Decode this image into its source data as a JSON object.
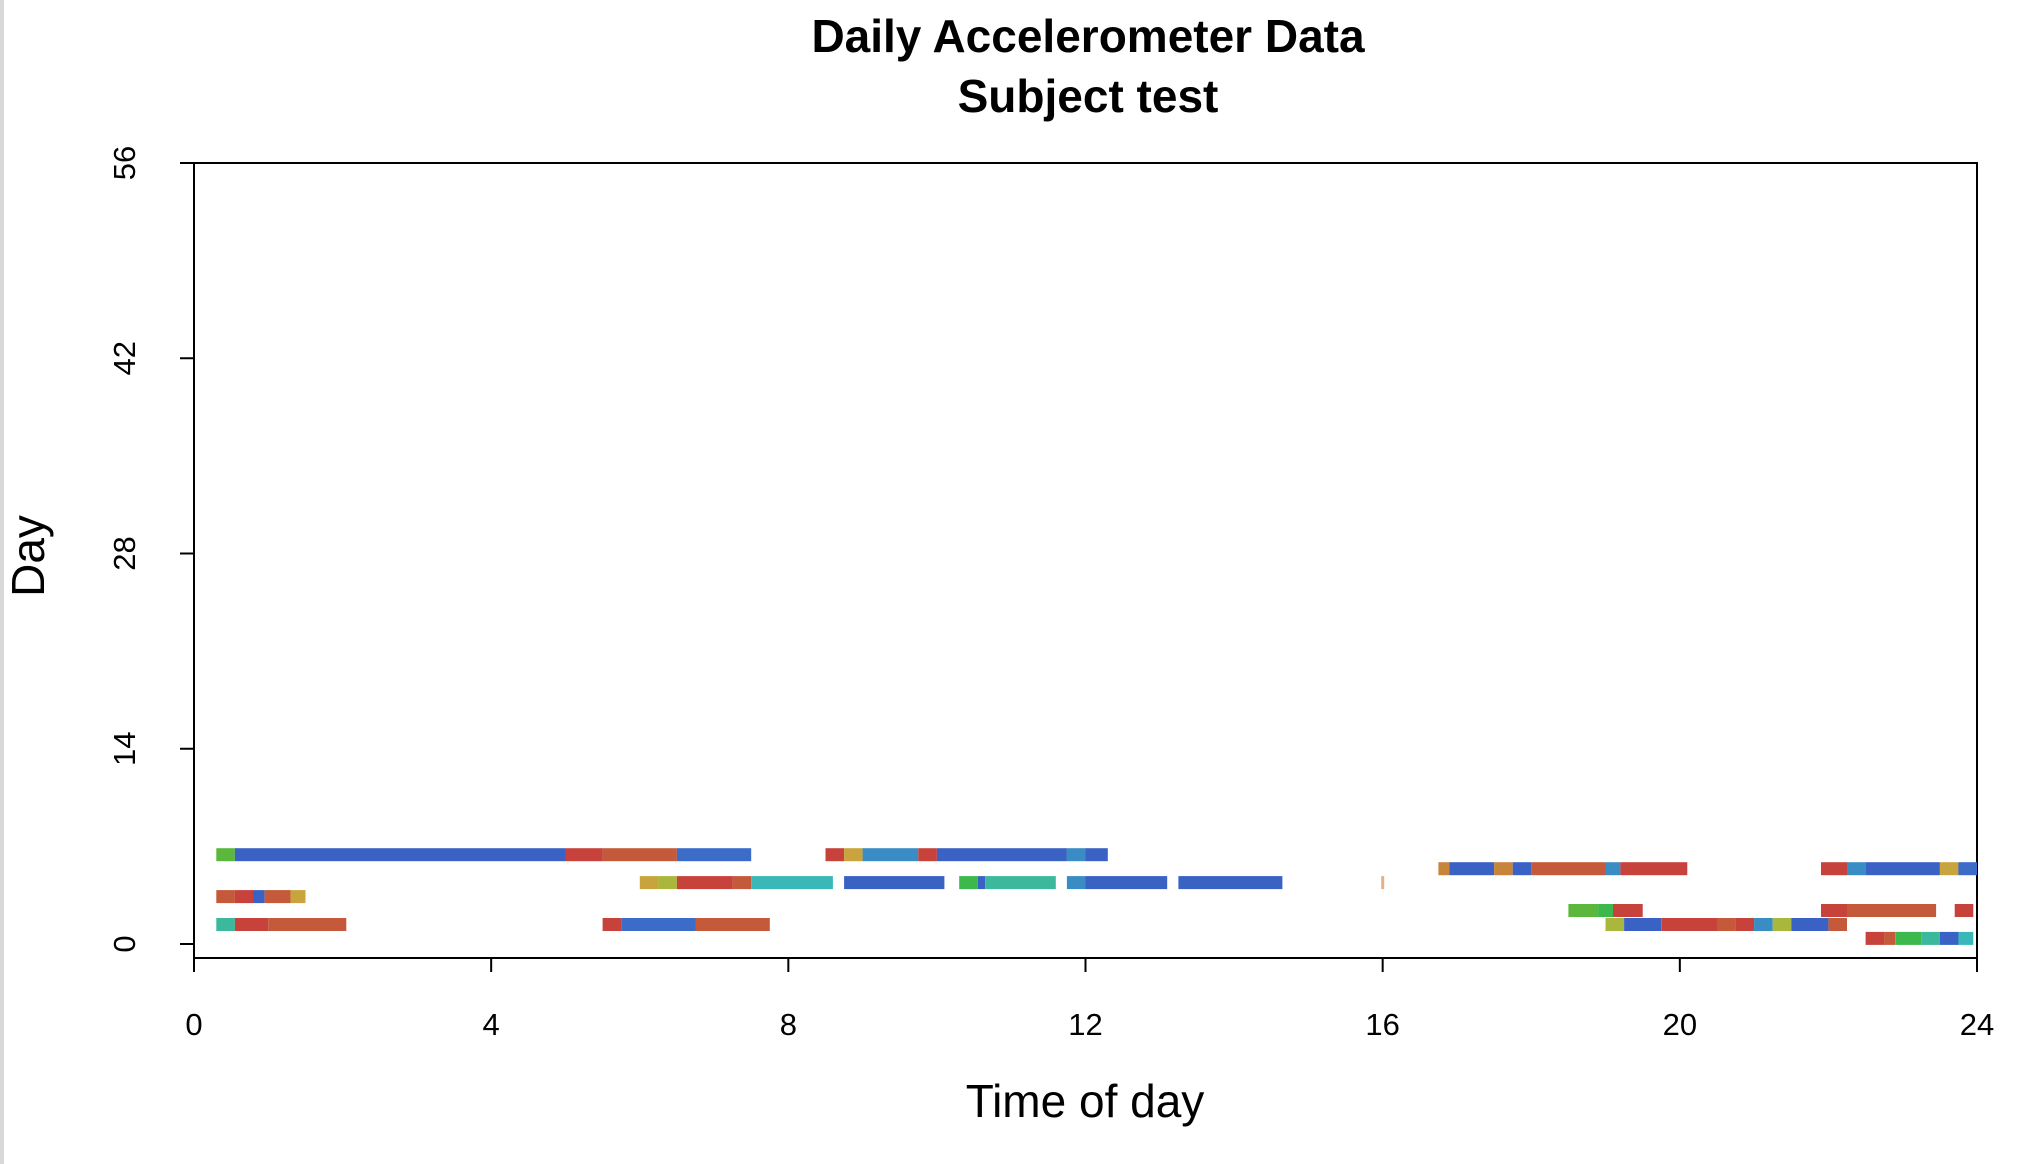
{
  "chart_data": {
    "type": "bar",
    "title": "Daily Accelerometer Data",
    "subtitle": "Subject test",
    "xlabel": "Time of day",
    "ylabel": "Day",
    "xlim": [
      0,
      24
    ],
    "ylim": [
      0,
      56
    ],
    "xticks": [
      "0",
      "4",
      "8",
      "12",
      "16",
      "20",
      "24"
    ],
    "yticks": [
      "0",
      "14",
      "28",
      "42",
      "56"
    ],
    "grid": false,
    "legend": "none",
    "segments": [
      {
        "day": 6.4,
        "start": 0.3,
        "end": 0.55,
        "color": "#5cb83c"
      },
      {
        "day": 6.4,
        "start": 0.55,
        "end": 5.0,
        "color": "#3a62c4"
      },
      {
        "day": 6.4,
        "start": 5.0,
        "end": 5.5,
        "color": "#c8423c"
      },
      {
        "day": 6.4,
        "start": 5.5,
        "end": 6.5,
        "color": "#c45a3a"
      },
      {
        "day": 6.4,
        "start": 6.5,
        "end": 7.5,
        "color": "#3a6cc8"
      },
      {
        "day": 6.4,
        "start": 8.5,
        "end": 8.75,
        "color": "#c8423c"
      },
      {
        "day": 6.4,
        "start": 8.75,
        "end": 9.0,
        "color": "#c9a43c"
      },
      {
        "day": 6.4,
        "start": 9.0,
        "end": 9.75,
        "color": "#3a8cc4"
      },
      {
        "day": 6.4,
        "start": 9.75,
        "end": 10.0,
        "color": "#c8423c"
      },
      {
        "day": 6.4,
        "start": 10.0,
        "end": 11.75,
        "color": "#3a62c4"
      },
      {
        "day": 6.4,
        "start": 11.75,
        "end": 12.0,
        "color": "#3a8cc4"
      },
      {
        "day": 6.4,
        "start": 12.0,
        "end": 12.3,
        "color": "#3a62c4"
      },
      {
        "day": 5.4,
        "start": 16.75,
        "end": 16.9,
        "color": "#c9843c"
      },
      {
        "day": 5.4,
        "start": 16.9,
        "end": 17.5,
        "color": "#3a62c4"
      },
      {
        "day": 5.4,
        "start": 17.5,
        "end": 17.75,
        "color": "#c9843c"
      },
      {
        "day": 5.4,
        "start": 17.75,
        "end": 18.0,
        "color": "#3a62c4"
      },
      {
        "day": 5.4,
        "start": 18.0,
        "end": 19.0,
        "color": "#c45a3a"
      },
      {
        "day": 5.4,
        "start": 19.0,
        "end": 19.2,
        "color": "#3a8cc4"
      },
      {
        "day": 5.4,
        "start": 19.2,
        "end": 20.1,
        "color": "#c8423c"
      },
      {
        "day": 5.4,
        "start": 21.9,
        "end": 22.25,
        "color": "#c8423c"
      },
      {
        "day": 5.4,
        "start": 22.25,
        "end": 22.5,
        "color": "#3a8cc4"
      },
      {
        "day": 5.4,
        "start": 22.5,
        "end": 23.5,
        "color": "#3a62c4"
      },
      {
        "day": 5.4,
        "start": 23.5,
        "end": 23.75,
        "color": "#c9a43c"
      },
      {
        "day": 5.4,
        "start": 23.75,
        "end": 24.0,
        "color": "#3a6cc8"
      },
      {
        "day": 4.4,
        "start": 6.0,
        "end": 6.25,
        "color": "#c9a43c"
      },
      {
        "day": 4.4,
        "start": 6.25,
        "end": 6.5,
        "color": "#a9b83c"
      },
      {
        "day": 4.4,
        "start": 6.5,
        "end": 7.25,
        "color": "#c8423c"
      },
      {
        "day": 4.4,
        "start": 7.25,
        "end": 7.5,
        "color": "#c45a3a"
      },
      {
        "day": 4.4,
        "start": 7.5,
        "end": 8.6,
        "color": "#3ab8b8"
      },
      {
        "day": 4.4,
        "start": 8.75,
        "end": 10.1,
        "color": "#3a62c4"
      },
      {
        "day": 4.4,
        "start": 10.3,
        "end": 10.55,
        "color": "#3cb84c"
      },
      {
        "day": 4.4,
        "start": 10.55,
        "end": 10.65,
        "color": "#3a62c4"
      },
      {
        "day": 4.4,
        "start": 10.65,
        "end": 11.6,
        "color": "#3cb89c"
      },
      {
        "day": 4.4,
        "start": 11.75,
        "end": 12.0,
        "color": "#3a8cc4"
      },
      {
        "day": 4.4,
        "start": 12.0,
        "end": 13.1,
        "color": "#3a62c4"
      },
      {
        "day": 4.4,
        "start": 13.25,
        "end": 14.65,
        "color": "#3a62c4"
      },
      {
        "day": 4.4,
        "start": 15.98,
        "end": 16.02,
        "color": "#e8b080"
      },
      {
        "day": 3.4,
        "start": 0.3,
        "end": 0.55,
        "color": "#c45a3a"
      },
      {
        "day": 3.4,
        "start": 0.55,
        "end": 0.8,
        "color": "#c8423c"
      },
      {
        "day": 3.4,
        "start": 0.8,
        "end": 0.95,
        "color": "#3a62c4"
      },
      {
        "day": 3.4,
        "start": 0.95,
        "end": 1.3,
        "color": "#c45a3a"
      },
      {
        "day": 3.4,
        "start": 1.3,
        "end": 1.5,
        "color": "#c9a43c"
      },
      {
        "day": 2.4,
        "start": 18.5,
        "end": 18.9,
        "color": "#5cb83c"
      },
      {
        "day": 2.4,
        "start": 18.9,
        "end": 19.1,
        "color": "#3cb84c"
      },
      {
        "day": 2.4,
        "start": 19.1,
        "end": 19.5,
        "color": "#c8423c"
      },
      {
        "day": 2.4,
        "start": 21.9,
        "end": 22.25,
        "color": "#c8423c"
      },
      {
        "day": 2.4,
        "start": 22.25,
        "end": 23.45,
        "color": "#c45a3a"
      },
      {
        "day": 2.4,
        "start": 23.7,
        "end": 23.95,
        "color": "#c8423c"
      },
      {
        "day": 1.4,
        "start": 0.3,
        "end": 0.55,
        "color": "#3cb89c"
      },
      {
        "day": 1.4,
        "start": 0.55,
        "end": 1.0,
        "color": "#c8423c"
      },
      {
        "day": 1.4,
        "start": 1.0,
        "end": 2.05,
        "color": "#c45a3a"
      },
      {
        "day": 1.4,
        "start": 5.5,
        "end": 5.75,
        "color": "#c8423c"
      },
      {
        "day": 1.4,
        "start": 5.75,
        "end": 6.75,
        "color": "#3a6cc8"
      },
      {
        "day": 1.4,
        "start": 6.75,
        "end": 7.75,
        "color": "#c45a3a"
      },
      {
        "day": 1.4,
        "start": 19.0,
        "end": 19.25,
        "color": "#a9b83c"
      },
      {
        "day": 1.4,
        "start": 19.25,
        "end": 19.75,
        "color": "#3a62c4"
      },
      {
        "day": 1.4,
        "start": 19.75,
        "end": 20.5,
        "color": "#c8423c"
      },
      {
        "day": 1.4,
        "start": 20.5,
        "end": 20.75,
        "color": "#c45a3a"
      },
      {
        "day": 1.4,
        "start": 20.75,
        "end": 21.0,
        "color": "#c8423c"
      },
      {
        "day": 1.4,
        "start": 21.0,
        "end": 21.25,
        "color": "#3a8cc4"
      },
      {
        "day": 1.4,
        "start": 21.25,
        "end": 21.5,
        "color": "#a9b83c"
      },
      {
        "day": 1.4,
        "start": 21.5,
        "end": 22.0,
        "color": "#3a62c4"
      },
      {
        "day": 1.4,
        "start": 22.0,
        "end": 22.25,
        "color": "#c45a3a"
      },
      {
        "day": 0.4,
        "start": 22.5,
        "end": 22.75,
        "color": "#c8423c"
      },
      {
        "day": 0.4,
        "start": 22.75,
        "end": 22.9,
        "color": "#c45a3a"
      },
      {
        "day": 0.4,
        "start": 22.9,
        "end": 23.25,
        "color": "#3cb84c"
      },
      {
        "day": 0.4,
        "start": 23.25,
        "end": 23.5,
        "color": "#3cb89c"
      },
      {
        "day": 0.4,
        "start": 23.5,
        "end": 23.75,
        "color": "#3a62c4"
      },
      {
        "day": 0.4,
        "start": 23.75,
        "end": 23.95,
        "color": "#3ab8b8"
      }
    ]
  }
}
